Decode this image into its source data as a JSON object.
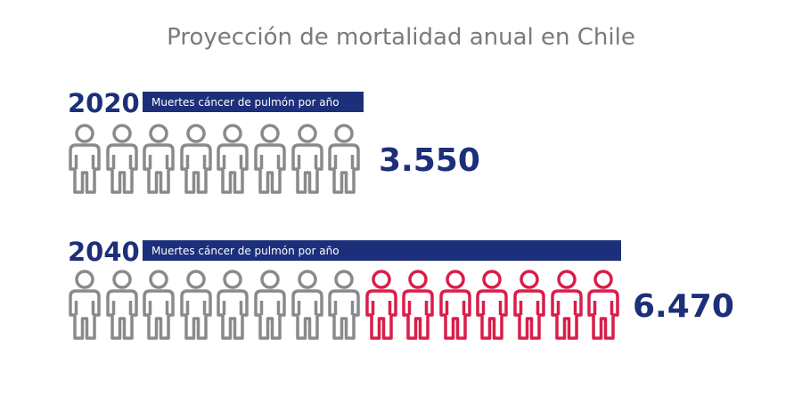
{
  "title": "Proyección de mortalidad anual en Chile",
  "rows": [
    {
      "year": "2020",
      "label": "Muertes cáncer de pulmón por año",
      "value": "3.550"
    },
    {
      "year": "2040",
      "label": "Muertes cáncer de pulmón por año",
      "value": "6.470"
    }
  ]
}
